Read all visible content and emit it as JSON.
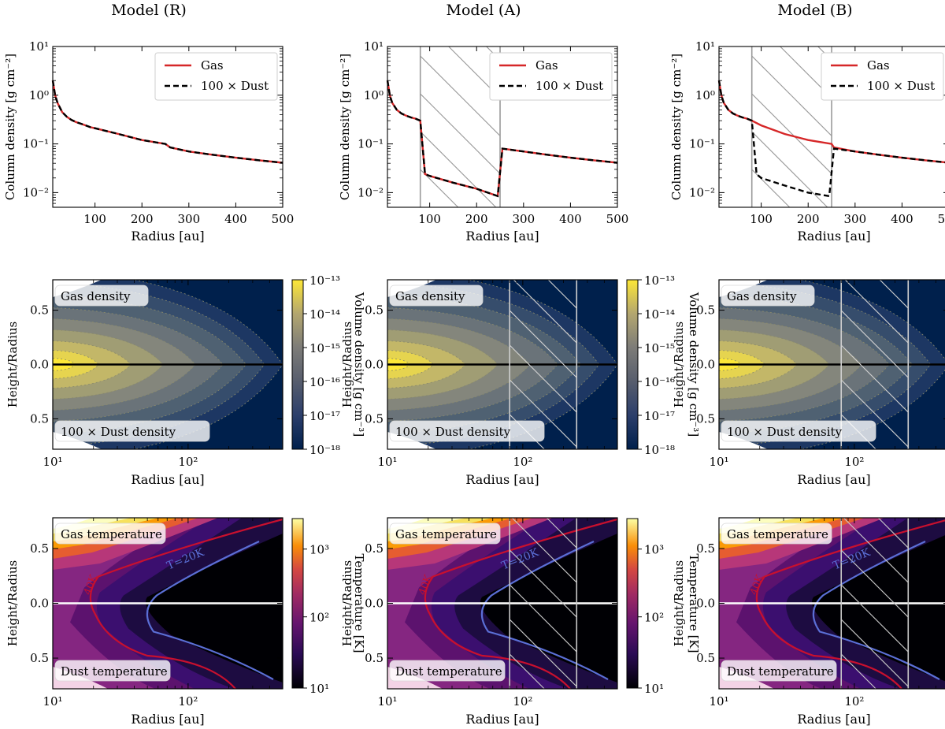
{
  "figure": {
    "column_titles": [
      "Model (R)",
      "Model (A)",
      "Model (B)"
    ]
  },
  "chart_data": [
    {
      "type": "line",
      "panel": "column-density",
      "models": [
        "R",
        "A",
        "B"
      ],
      "xlabel": "Radius [au]",
      "ylabel": "Column density [g cm⁻²]",
      "x_ticks": [
        "100",
        "200",
        "300",
        "400",
        "500"
      ],
      "y_ticks": [
        "10⁻²",
        "10⁻¹",
        "10⁰",
        "10¹"
      ],
      "xlim": [
        10,
        500
      ],
      "ylim": [
        0.005,
        10
      ],
      "yscale": "log",
      "legend": [
        "Gas",
        "100 × Dust"
      ],
      "legend_position": "top-right",
      "colors": {
        "gas": "#d62728",
        "dust": "#000000",
        "gap_hatch": "#9a9a9a"
      },
      "x": [
        10,
        15,
        20,
        30,
        40,
        50,
        60,
        70,
        80,
        90,
        100,
        150,
        200,
        250,
        260,
        300,
        350,
        400,
        450,
        500
      ],
      "profile_smooth": [
        2.0,
        1.0,
        0.7,
        0.45,
        0.36,
        0.31,
        0.28,
        0.26,
        0.24,
        0.22,
        0.21,
        0.16,
        0.12,
        0.1,
        0.085,
        0.07,
        0.06,
        0.052,
        0.046,
        0.041
      ],
      "series": {
        "R": {
          "gas": "smooth",
          "dust": "smooth"
        },
        "A": {
          "gap_au": [
            80,
            250
          ],
          "gas": [
            [
              10,
              2.0
            ],
            [
              15,
              1.0
            ],
            [
              20,
              0.7
            ],
            [
              30,
              0.5
            ],
            [
              40,
              0.42
            ],
            [
              50,
              0.38
            ],
            [
              60,
              0.35
            ],
            [
              70,
              0.33
            ],
            [
              80,
              0.3
            ],
            [
              90,
              0.024
            ],
            [
              100,
              0.022
            ],
            [
              150,
              0.016
            ],
            [
              200,
              0.012
            ],
            [
              245,
              0.0085
            ],
            [
              255,
              0.08
            ],
            [
              300,
              0.07
            ],
            [
              350,
              0.06
            ],
            [
              400,
              0.052
            ],
            [
              450,
              0.046
            ],
            [
              500,
              0.041
            ]
          ],
          "dust": "same as gas"
        },
        "B": {
          "gap_au": [
            80,
            250
          ],
          "gas": [
            [
              10,
              2.0
            ],
            [
              15,
              1.0
            ],
            [
              20,
              0.7
            ],
            [
              30,
              0.5
            ],
            [
              40,
              0.42
            ],
            [
              50,
              0.38
            ],
            [
              60,
              0.35
            ],
            [
              70,
              0.33
            ],
            [
              80,
              0.3
            ],
            [
              100,
              0.24
            ],
            [
              150,
              0.16
            ],
            [
              200,
              0.12
            ],
            [
              250,
              0.1
            ],
            [
              255,
              0.085
            ],
            [
              300,
              0.07
            ],
            [
              350,
              0.06
            ],
            [
              400,
              0.052
            ],
            [
              450,
              0.046
            ],
            [
              500,
              0.041
            ]
          ],
          "dust": [
            [
              10,
              2.0
            ],
            [
              15,
              1.0
            ],
            [
              20,
              0.7
            ],
            [
              30,
              0.5
            ],
            [
              40,
              0.42
            ],
            [
              50,
              0.38
            ],
            [
              60,
              0.35
            ],
            [
              70,
              0.33
            ],
            [
              80,
              0.3
            ],
            [
              90,
              0.024
            ],
            [
              100,
              0.02
            ],
            [
              150,
              0.014
            ],
            [
              200,
              0.01
            ],
            [
              245,
              0.0085
            ],
            [
              255,
              0.08
            ],
            [
              300,
              0.07
            ],
            [
              350,
              0.06
            ],
            [
              400,
              0.052
            ],
            [
              450,
              0.046
            ],
            [
              500,
              0.041
            ]
          ]
        }
      }
    },
    {
      "type": "heatmap",
      "panel": "volume-density",
      "models": [
        "R",
        "A",
        "B"
      ],
      "xlabel": "Radius [au]",
      "ylabel": "Height/Radius",
      "xscale": "log",
      "xlim": [
        10,
        500
      ],
      "x_ticks": [
        "10¹",
        "10²"
      ],
      "y_ticks": [
        "0.5",
        "0.0",
        "0.5"
      ],
      "annotations": [
        "Gas density",
        "100 × Dust density"
      ],
      "colorbar_label": "Volume density [g cm⁻³]",
      "colorbar_ticks": [
        "10⁻¹³",
        "10⁻¹⁴",
        "10⁻¹⁵",
        "10⁻¹⁶",
        "10⁻¹⁷",
        "10⁻¹⁸"
      ],
      "colormap": "cividis",
      "range_log10": [
        -18,
        -13
      ],
      "gap_au": [
        80,
        250
      ]
    },
    {
      "type": "heatmap",
      "panel": "temperature",
      "models": [
        "R",
        "A",
        "B"
      ],
      "xlabel": "Radius [au]",
      "ylabel": "Height/Radius",
      "xscale": "log",
      "xlim": [
        10,
        500
      ],
      "x_ticks": [
        "10¹",
        "10²"
      ],
      "y_ticks": [
        "0.5",
        "0.0",
        "0.5"
      ],
      "annotations": [
        "Gas temperature",
        "Dust temperature"
      ],
      "colorbar_label": "Temperature [K]",
      "colorbar_ticks": [
        "10³",
        "10²",
        "10¹"
      ],
      "colormap": "inferno",
      "range_log10": [
        1,
        3.5
      ],
      "contours": [
        {
          "label": "T=20K",
          "color": "#5b6fd6"
        },
        {
          "label": "40K",
          "color": "#c8102e"
        }
      ],
      "gap_au": [
        80,
        250
      ]
    }
  ]
}
